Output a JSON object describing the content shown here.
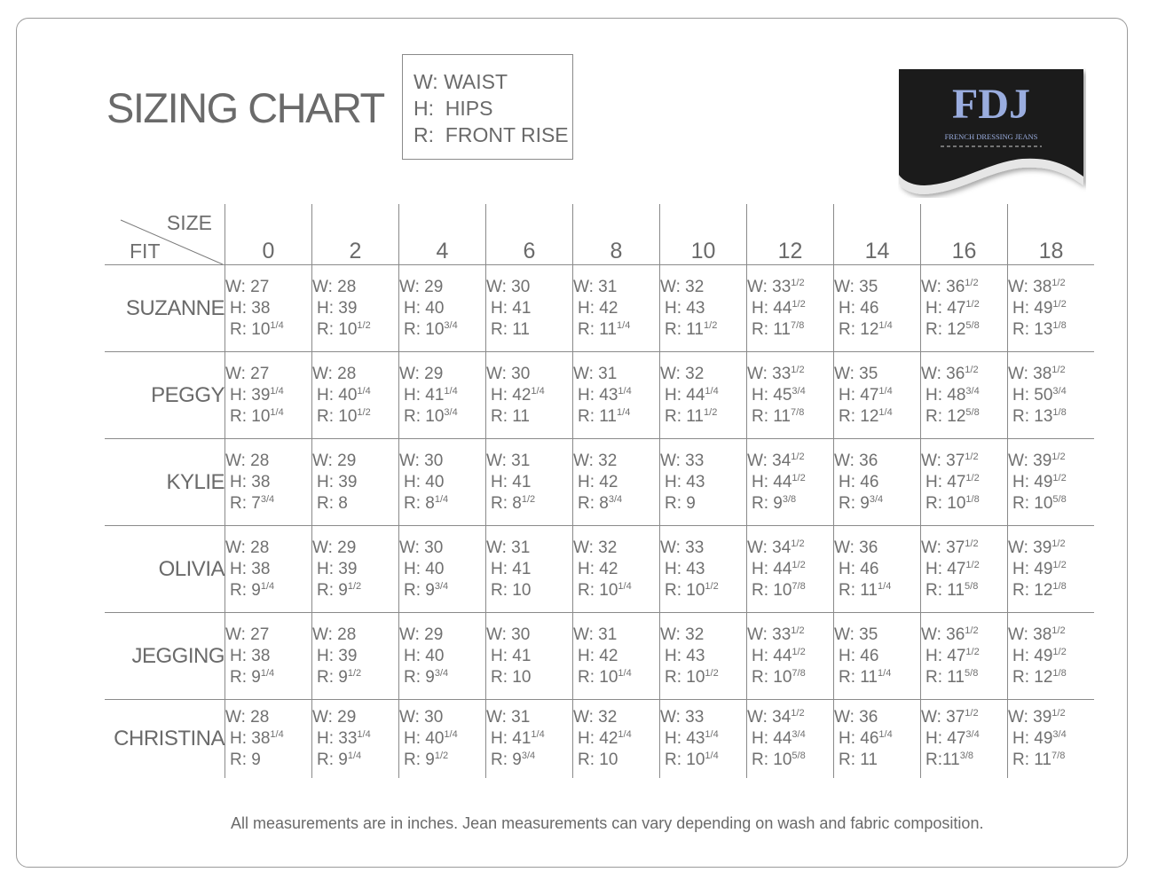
{
  "title": "SIZING CHART",
  "legend": [
    "W: WAIST",
    "H:  HIPS",
    "R:  FRONT RISE"
  ],
  "logo": {
    "letters": "FDJ",
    "tagline": "FRENCH DRESSING JEANS",
    "colors": {
      "background": "#1b1b1b",
      "letters": "#9aaddf",
      "wave": "#e6e6e6"
    }
  },
  "header": {
    "size_label": "SIZE",
    "fit_label": "FIT",
    "sizes": [
      "0",
      "2",
      "4",
      "6",
      "8",
      "10",
      "12",
      "14",
      "16",
      "18"
    ]
  },
  "rows": [
    {
      "fit": "SUZANNE",
      "cells": [
        [
          [
            "W: 27",
            ""
          ],
          [
            "H: 38",
            ""
          ],
          [
            "R: 10",
            "1/4"
          ]
        ],
        [
          [
            "W: 28",
            ""
          ],
          [
            "H: 39",
            ""
          ],
          [
            "R: 10",
            "1/2"
          ]
        ],
        [
          [
            "W: 29",
            ""
          ],
          [
            "H: 40",
            ""
          ],
          [
            "R: 10",
            "3/4"
          ]
        ],
        [
          [
            "W: 30",
            ""
          ],
          [
            "H: 41",
            ""
          ],
          [
            "R: 11",
            ""
          ]
        ],
        [
          [
            "W: 31",
            ""
          ],
          [
            "H: 42",
            ""
          ],
          [
            "R: 11",
            "1/4"
          ]
        ],
        [
          [
            "W: 32",
            ""
          ],
          [
            "H: 43",
            ""
          ],
          [
            "R: 11",
            "1/2"
          ]
        ],
        [
          [
            "W: 33",
            "1/2"
          ],
          [
            "H: 44",
            "1/2"
          ],
          [
            "R: 11",
            "7/8"
          ]
        ],
        [
          [
            "W: 35",
            ""
          ],
          [
            "H: 46",
            ""
          ],
          [
            "R: 12",
            "1/4"
          ]
        ],
        [
          [
            "W: 36",
            "1/2"
          ],
          [
            "H: 47",
            "1/2"
          ],
          [
            "R: 12",
            "5/8"
          ]
        ],
        [
          [
            "W: 38",
            "1/2"
          ],
          [
            "H: 49",
            "1/2"
          ],
          [
            "R: 13",
            "1/8"
          ]
        ]
      ]
    },
    {
      "fit": "PEGGY",
      "cells": [
        [
          [
            "W: 27",
            ""
          ],
          [
            "H: 39",
            "1/4"
          ],
          [
            "R: 10",
            "1/4"
          ]
        ],
        [
          [
            "W: 28",
            ""
          ],
          [
            "H: 40",
            "1/4"
          ],
          [
            "R: 10",
            "1/2"
          ]
        ],
        [
          [
            "W: 29",
            ""
          ],
          [
            "H: 41",
            "1/4"
          ],
          [
            "R: 10",
            "3/4"
          ]
        ],
        [
          [
            "W: 30",
            ""
          ],
          [
            "H: 42",
            "1/4"
          ],
          [
            "R: 11",
            ""
          ]
        ],
        [
          [
            "W: 31",
            ""
          ],
          [
            "H: 43",
            "1/4"
          ],
          [
            "R: 11",
            "1/4"
          ]
        ],
        [
          [
            "W: 32",
            ""
          ],
          [
            "H: 44",
            "1/4"
          ],
          [
            "R: 11",
            "1/2"
          ]
        ],
        [
          [
            "W: 33",
            "1/2"
          ],
          [
            "H: 45",
            "3/4"
          ],
          [
            "R: 11",
            "7/8"
          ]
        ],
        [
          [
            "W: 35",
            ""
          ],
          [
            "H: 47",
            "1/4"
          ],
          [
            "R: 12",
            "1/4"
          ]
        ],
        [
          [
            "W: 36",
            "1/2"
          ],
          [
            "H: 48",
            "3/4"
          ],
          [
            "R: 12",
            "5/8"
          ]
        ],
        [
          [
            "W: 38",
            "1/2"
          ],
          [
            "H: 50",
            "3/4"
          ],
          [
            "R: 13",
            "1/8"
          ]
        ]
      ]
    },
    {
      "fit": "KYLIE",
      "cells": [
        [
          [
            "W: 28",
            ""
          ],
          [
            "H: 38",
            ""
          ],
          [
            "R: 7",
            "3/4"
          ]
        ],
        [
          [
            "W: 29",
            ""
          ],
          [
            "H: 39",
            ""
          ],
          [
            "R: 8",
            ""
          ]
        ],
        [
          [
            "W: 30",
            ""
          ],
          [
            "H: 40",
            ""
          ],
          [
            "R: 8",
            "1/4"
          ]
        ],
        [
          [
            "W: 31",
            ""
          ],
          [
            "H: 41",
            ""
          ],
          [
            "R: 8",
            "1/2"
          ]
        ],
        [
          [
            "W: 32",
            ""
          ],
          [
            "H: 42",
            ""
          ],
          [
            "R: 8",
            "3/4"
          ]
        ],
        [
          [
            "W: 33",
            ""
          ],
          [
            "H: 43",
            ""
          ],
          [
            "R: 9",
            ""
          ]
        ],
        [
          [
            "W: 34",
            "1/2"
          ],
          [
            "H: 44",
            "1/2"
          ],
          [
            "R: 9",
            "3/8"
          ]
        ],
        [
          [
            "W: 36",
            ""
          ],
          [
            "H: 46",
            ""
          ],
          [
            "R: 9",
            "3/4"
          ]
        ],
        [
          [
            "W: 37",
            "1/2"
          ],
          [
            "H: 47",
            "1/2"
          ],
          [
            "R: 10",
            "1/8"
          ]
        ],
        [
          [
            "W: 39",
            "1/2"
          ],
          [
            "H: 49",
            "1/2"
          ],
          [
            "R: 10",
            "5/8"
          ]
        ]
      ]
    },
    {
      "fit": "OLIVIA",
      "cells": [
        [
          [
            "W: 28",
            ""
          ],
          [
            "H: 38",
            ""
          ],
          [
            "R: 9",
            "1/4"
          ]
        ],
        [
          [
            "W: 29",
            ""
          ],
          [
            "H: 39",
            ""
          ],
          [
            "R: 9",
            "1/2"
          ]
        ],
        [
          [
            "W: 30",
            ""
          ],
          [
            "H: 40",
            ""
          ],
          [
            "R: 9",
            "3/4"
          ]
        ],
        [
          [
            "W: 31",
            ""
          ],
          [
            "H: 41",
            ""
          ],
          [
            "R: 10",
            ""
          ]
        ],
        [
          [
            "W: 32",
            ""
          ],
          [
            "H: 42",
            ""
          ],
          [
            "R: 10",
            "1/4"
          ]
        ],
        [
          [
            "W: 33",
            ""
          ],
          [
            "H: 43",
            ""
          ],
          [
            "R: 10",
            "1/2"
          ]
        ],
        [
          [
            "W: 34",
            "1/2"
          ],
          [
            "H: 44",
            "1/2"
          ],
          [
            "R: 10",
            "7/8"
          ]
        ],
        [
          [
            "W: 36",
            ""
          ],
          [
            "H: 46",
            ""
          ],
          [
            "R: 11",
            "1/4"
          ]
        ],
        [
          [
            "W: 37",
            "1/2"
          ],
          [
            "H: 47",
            "1/2"
          ],
          [
            "R: 11",
            "5/8"
          ]
        ],
        [
          [
            "W: 39",
            "1/2"
          ],
          [
            "H: 49",
            "1/2"
          ],
          [
            "R: 12",
            "1/8"
          ]
        ]
      ]
    },
    {
      "fit": "JEGGING",
      "cells": [
        [
          [
            "W: 27",
            ""
          ],
          [
            "H: 38",
            ""
          ],
          [
            "R: 9",
            "1/4"
          ]
        ],
        [
          [
            "W: 28",
            ""
          ],
          [
            "H: 39",
            ""
          ],
          [
            "R: 9",
            "1/2"
          ]
        ],
        [
          [
            "W: 29",
            ""
          ],
          [
            "H: 40",
            ""
          ],
          [
            "R: 9",
            "3/4"
          ]
        ],
        [
          [
            "W: 30",
            ""
          ],
          [
            "H: 41",
            ""
          ],
          [
            "R: 10",
            ""
          ]
        ],
        [
          [
            "W: 31",
            ""
          ],
          [
            "H: 42",
            ""
          ],
          [
            "R: 10",
            "1/4"
          ]
        ],
        [
          [
            "W: 32",
            ""
          ],
          [
            "H: 43",
            ""
          ],
          [
            "R: 10",
            "1/2"
          ]
        ],
        [
          [
            "W: 33",
            "1/2"
          ],
          [
            "H: 44",
            "1/2"
          ],
          [
            "R: 10",
            "7/8"
          ]
        ],
        [
          [
            "W: 35",
            ""
          ],
          [
            "H: 46",
            ""
          ],
          [
            "R: 11",
            "1/4"
          ]
        ],
        [
          [
            "W: 36",
            "1/2"
          ],
          [
            "H: 47",
            "1/2"
          ],
          [
            "R: 11",
            "5/8"
          ]
        ],
        [
          [
            "W: 38",
            "1/2"
          ],
          [
            "H: 49",
            "1/2"
          ],
          [
            "R: 12",
            "1/8"
          ]
        ]
      ]
    },
    {
      "fit": "CHRISTINA",
      "cells": [
        [
          [
            "W: 28",
            ""
          ],
          [
            "H: 38",
            "1/4"
          ],
          [
            "R: 9",
            ""
          ]
        ],
        [
          [
            "W: 29",
            ""
          ],
          [
            "H: 33",
            "1/4"
          ],
          [
            "R: 9",
            "1/4"
          ]
        ],
        [
          [
            "W: 30",
            ""
          ],
          [
            "H: 40",
            "1/4"
          ],
          [
            "R: 9",
            "1/2"
          ]
        ],
        [
          [
            "W: 31",
            ""
          ],
          [
            "H: 41",
            "1/4"
          ],
          [
            "R: 9",
            "3/4"
          ]
        ],
        [
          [
            "W: 32",
            ""
          ],
          [
            "H: 42",
            "1/4"
          ],
          [
            "R: 10",
            ""
          ]
        ],
        [
          [
            "W: 33",
            ""
          ],
          [
            "H: 43",
            "1/4"
          ],
          [
            "R: 10",
            "1/4"
          ]
        ],
        [
          [
            "W: 34",
            "1/2"
          ],
          [
            "H: 44",
            "3/4"
          ],
          [
            "R: 10",
            "5/8"
          ]
        ],
        [
          [
            "W: 36",
            ""
          ],
          [
            "H: 46",
            "1/4"
          ],
          [
            "R: 11",
            ""
          ]
        ],
        [
          [
            "W: 37",
            "1/2"
          ],
          [
            "H: 47",
            "3/4"
          ],
          [
            "R:11",
            "3/8"
          ]
        ],
        [
          [
            "W: 39",
            "1/2"
          ],
          [
            "H: 49",
            "3/4"
          ],
          [
            "R: 11",
            "7/8"
          ]
        ]
      ]
    }
  ],
  "footer": "All measurements are in inches. Jean measurements can vary depending on wash and fabric composition."
}
